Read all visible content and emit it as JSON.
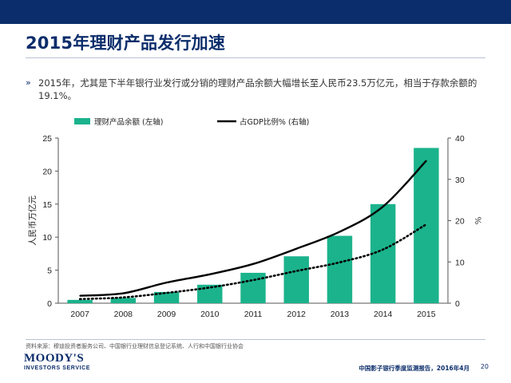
{
  "slide": {
    "title": "2015年理财产品发行加速",
    "bullet_marker": "»",
    "bullet_text": "2015年，尤其是下半年银行业发行或分销的理财产品余额大幅增长至人民币23.5万亿元，相当于存款余额的19.1%。"
  },
  "chart_data": {
    "type": "bar+line",
    "categories": [
      "2007",
      "2008",
      "2009",
      "2010",
      "2011",
      "2012",
      "2013",
      "2014",
      "2015"
    ],
    "series": [
      {
        "name": "理财产品余额 (左轴)",
        "type": "bar",
        "axis": "left",
        "color": "#1bb38c",
        "values": [
          0.5,
          0.8,
          1.7,
          2.8,
          4.6,
          7.1,
          10.2,
          15.0,
          23.5
        ]
      },
      {
        "name": "占GDP比例% (右轴)",
        "type": "line",
        "axis": "right",
        "color": "#000000",
        "values": [
          1.8,
          2.4,
          5.0,
          7.0,
          9.5,
          13.2,
          17.3,
          23.4,
          34.5
        ]
      },
      {
        "name": "dotted-trend",
        "type": "dotted-line",
        "axis": "right",
        "color": "#000000",
        "values": [
          1.0,
          1.4,
          2.5,
          3.8,
          5.6,
          7.8,
          9.9,
          13.0,
          19.1
        ]
      }
    ],
    "y_left": {
      "label": "人民币万亿元",
      "range": [
        0,
        25
      ],
      "ticks": [
        0,
        5,
        10,
        15,
        20,
        25
      ]
    },
    "y_right": {
      "label": "%",
      "range": [
        0,
        40
      ],
      "ticks": [
        0,
        10,
        20,
        30,
        40
      ]
    },
    "legend": [
      {
        "label": "理财产品余额 (左轴)",
        "kind": "bar",
        "color": "#1bb38c"
      },
      {
        "label": "占GDP比例% (右轴)",
        "kind": "line",
        "color": "#000000"
      }
    ],
    "legend_position": "top"
  },
  "footer": {
    "source": "资料来源：穆迪投资者服务公司、中国银行业理财信息登记系统、人行和中国银行业协会",
    "logo_main": "MOODY'S",
    "logo_sub": "INVESTORS SERVICE",
    "report": "中国影子银行季度监测报告，2016年4月",
    "page_number": "20"
  }
}
